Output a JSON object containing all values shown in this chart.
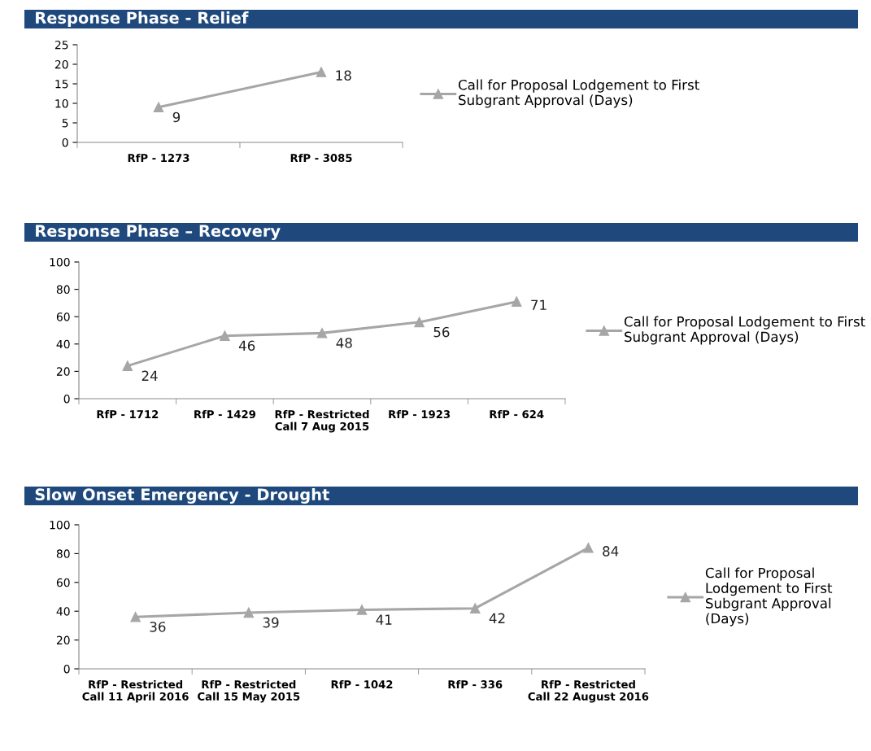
{
  "chart_data": [
    {
      "type": "line",
      "title": "Response Phase - Relief",
      "categories": [
        "RfP - 1273",
        "RfP - 3085"
      ],
      "series": [
        {
          "name": "Call for Proposal Lodgement to First Subgrant Approval (Days)",
          "color": "#a6a6a6",
          "values": [
            9,
            18
          ]
        }
      ],
      "ylim": [
        0,
        25
      ],
      "yticks": [
        0,
        5,
        10,
        15,
        20,
        25
      ],
      "data_labels": true,
      "marker": "triangle",
      "legend": "right",
      "grid": false
    },
    {
      "type": "line",
      "title": "Response Phase – Recovery",
      "categories": [
        "RfP - 1712",
        "RfP - 1429",
        "RfP - Restricted Call 7 Aug 2015",
        "RfP - 1923",
        "RfP - 624"
      ],
      "series": [
        {
          "name": "Call for Proposal Lodgement to First Subgrant Approval (Days)",
          "color": "#a6a6a6",
          "values": [
            24,
            46,
            48,
            56,
            71
          ]
        }
      ],
      "ylim": [
        0,
        100
      ],
      "yticks": [
        0,
        20,
        40,
        60,
        80,
        100
      ],
      "data_labels": true,
      "marker": "triangle",
      "legend": "right",
      "grid": false
    },
    {
      "type": "line",
      "title": "Slow Onset Emergency - Drought",
      "categories": [
        "RfP - Restricted Call 11 April 2016",
        "RfP - Restricted Call 15 May 2015",
        "RfP - 1042",
        "RfP - 336",
        "RfP - Restricted Call 22 August 2016"
      ],
      "series": [
        {
          "name": "Call for Proposal Lodgement to First Subgrant Approval (Days)",
          "color": "#a6a6a6",
          "values": [
            36,
            39,
            41,
            42,
            84
          ]
        }
      ],
      "ylim": [
        0,
        100
      ],
      "yticks": [
        0,
        20,
        40,
        60,
        80,
        100
      ],
      "data_labels": true,
      "marker": "triangle",
      "legend": "right",
      "grid": false
    }
  ]
}
